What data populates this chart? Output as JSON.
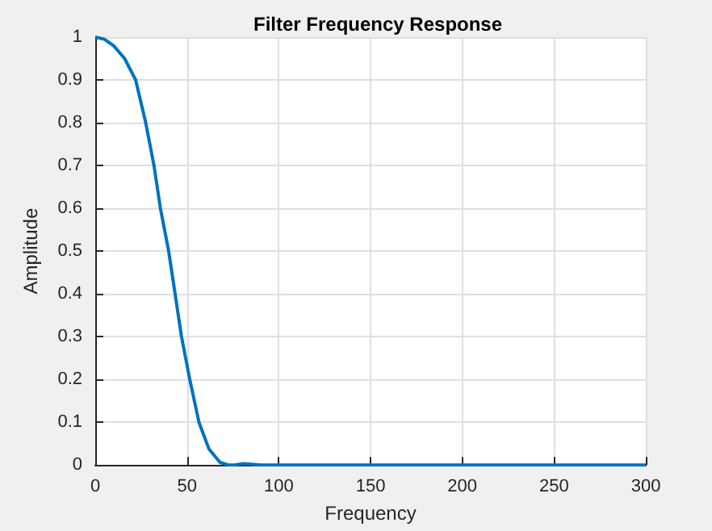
{
  "chart_data": {
    "type": "line",
    "title": "Filter Frequency Response",
    "xlabel": "Frequency",
    "ylabel": "Amplitude",
    "x": [
      0,
      5,
      10,
      16,
      22,
      27.5,
      32,
      35.5,
      40,
      43.5,
      47,
      51.5,
      56.5,
      62,
      68,
      72.5,
      76,
      80,
      85,
      90,
      100,
      150,
      200,
      250,
      300
    ],
    "series": [
      {
        "color": "#0072bd",
        "values": [
          1,
          0.995,
          0.98,
          0.95,
          0.9,
          0.8,
          0.7,
          0.6,
          0.5,
          0.4,
          0.3,
          0.2,
          0.1,
          0.037,
          0.006,
          0,
          0,
          0.003,
          0.002,
          0,
          0,
          0,
          0,
          0,
          0
        ]
      }
    ],
    "xlim": [
      0,
      300
    ],
    "xticks": [
      0,
      50,
      100,
      150,
      200,
      250,
      300
    ],
    "ylim": [
      0,
      1
    ],
    "yticks": [
      0,
      0.1,
      0.2,
      0.3,
      0.4,
      0.5,
      0.6,
      0.7,
      0.8,
      0.9,
      1
    ],
    "grid": true,
    "marker": "none",
    "line_style": "solid"
  }
}
